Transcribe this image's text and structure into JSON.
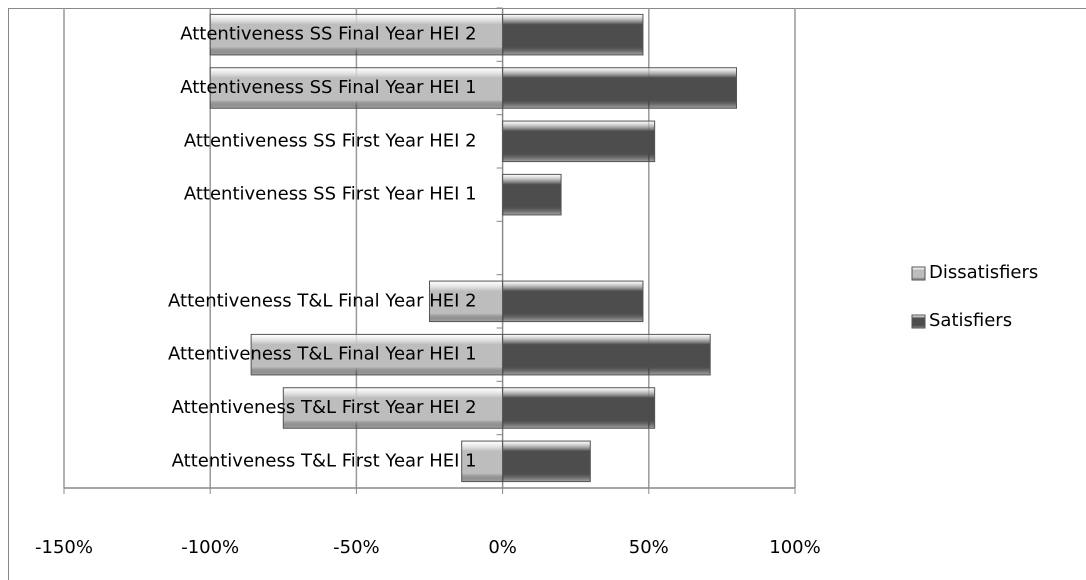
{
  "chart_data": {
    "type": "bar",
    "orientation": "horizontal",
    "categories": [
      "Attentiveness SS Final Year HEI 2",
      "Attentiveness SS Final Year HEI 1",
      "Attentiveness SS First Year HEI 2",
      "Attentiveness SS First Year HEI 1",
      null,
      "Attentiveness T&L Final Year HEI 2",
      "Attentiveness T&L Final Year HEI 1",
      "Attentiveness T&L First Year HEI 2",
      "Attentiveness T&L First Year HEI 1"
    ],
    "series": [
      {
        "name": "Dissatisfiers",
        "color": "#bdbdbd",
        "values": [
          -100,
          -100,
          0,
          0,
          null,
          -25,
          -86,
          -75,
          -14
        ]
      },
      {
        "name": "Satisfiers",
        "color": "#4d4d4d",
        "values": [
          48,
          80,
          52,
          20,
          null,
          48,
          71,
          52,
          30
        ]
      }
    ],
    "xlim": [
      -150,
      100
    ],
    "xticks": [
      {
        "value": -150,
        "label": "-150%"
      },
      {
        "value": -100,
        "label": "-100%"
      },
      {
        "value": -50,
        "label": "-50%"
      },
      {
        "value": 0,
        "label": "0%"
      },
      {
        "value": 50,
        "label": "50%"
      },
      {
        "value": 100,
        "label": "100%"
      }
    ],
    "grid": true,
    "legend": "right"
  }
}
